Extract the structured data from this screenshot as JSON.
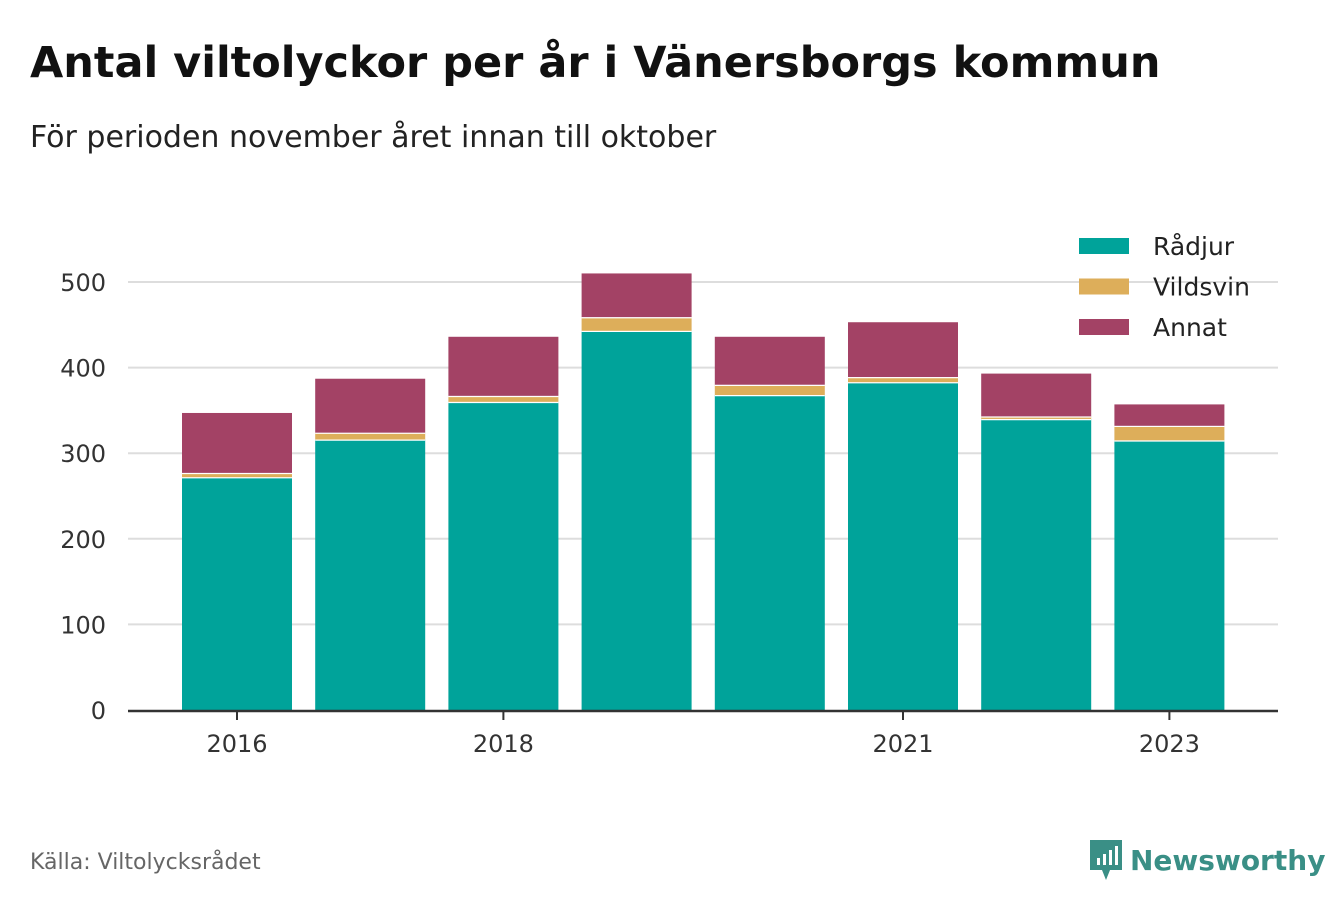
{
  "title": "Antal viltolyckor per år i Vänersborgs kommun",
  "subtitle": "För perioden november året innan till oktober",
  "source": "Källa: Viltolycksrådet",
  "brand": "Newsworthy",
  "colors": {
    "radjur": "#00A39A",
    "vildsvin": "#DDAE5A",
    "annat": "#A34265",
    "grid": "#DDDDDD",
    "axis": "#333333",
    "brand": "#3a8f86"
  },
  "chart_data": {
    "type": "bar",
    "stacked": true,
    "categories": [
      "2016",
      "2017",
      "2018",
      "2019",
      "2020",
      "2021",
      "2022",
      "2023"
    ],
    "tick_labels": [
      "2016",
      "",
      "2018",
      "",
      "",
      "2021",
      "",
      "2023"
    ],
    "series": [
      {
        "name": "Rådjur",
        "values": [
          272,
          316,
          360,
          443,
          368,
          383,
          340,
          315
        ]
      },
      {
        "name": "Vildsvin",
        "values": [
          5,
          8,
          7,
          16,
          12,
          6,
          3,
          17
        ]
      },
      {
        "name": "Annat",
        "values": [
          70,
          63,
          69,
          51,
          56,
          64,
          50,
          25
        ]
      }
    ],
    "y_ticks": [
      0,
      100,
      200,
      300,
      400,
      500
    ],
    "ylim": [
      0,
      500
    ],
    "grid": true,
    "legend": "top-right"
  }
}
